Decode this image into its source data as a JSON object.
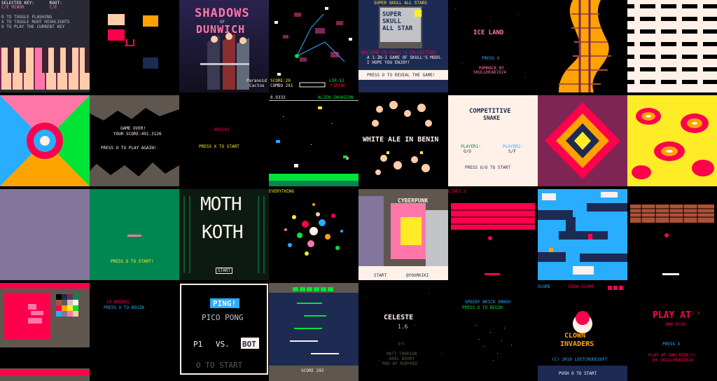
{
  "colors": {
    "pico_red": "#ff004d",
    "pico_orange": "#ffa300",
    "pico_yellow": "#ffec27",
    "pico_green": "#00e436",
    "pico_blue": "#29adff",
    "pico_pink": "#ff77a8",
    "pico_peach": "#ffccaa",
    "pico_white": "#fff1e8",
    "pico_dark_blue": "#1d2b53",
    "pico_dark_purple": "#7e2553",
    "pico_dark_green": "#008751",
    "pico_brown": "#ab5236",
    "pico_dark_gray": "#5f574f",
    "pico_light_gray": "#c2c3c7"
  },
  "carts": [
    {
      "id": "key-tester",
      "lines": [
        "SELECTED KEY:      ROOT:",
        "C/E MINOR          C/E",
        "",
        "O TO TOGGLE FLASHING",
        "X TO TOGGLE ROOT HIGHLIGHTS",
        "O TO PLAY THE CURRENT KEY"
      ]
    },
    {
      "id": "color-blocks"
    },
    {
      "id": "shadows-of-dunwich",
      "title": "SHADOWS",
      "of": "OF",
      "subtitle": "DUNWICH",
      "credit1": "Paranoid",
      "credit2": "Cactus"
    },
    {
      "id": "space-shooter",
      "score": "SCORE:20",
      "combo": "COMBO 2X1",
      "level": "LSR:12",
      "status": "FIRING"
    },
    {
      "id": "super-skull-all-star",
      "header": "SUPER SKULL ALL STARS",
      "box_title": "SUPER SKULL ALL STAR",
      "welcome": "WELCOME TO SKULL'S COLLECTION!",
      "desc": "A 1-IN-1 GAME OF SKULL'S MODS. I HOPE YOU ENJOY!",
      "prompt": "PRESS O TO REVEAL THE GAME!"
    },
    {
      "id": "ice-land",
      "title": "ICE LAND",
      "prompt": "PRESS X",
      "credit1": "ROMHACK BY",
      "credit2": "SKULLHEAD1924"
    },
    {
      "id": "brick-tower"
    },
    {
      "id": "zigzag-pattern"
    },
    {
      "id": "rainbow-kaleidoscope"
    },
    {
      "id": "game-over",
      "title": "GAME OVER!",
      "score": "YOUR SCORE:491.3126",
      "prompt": "PRESS O TO PLAY AGAIN!"
    },
    {
      "id": "bricks",
      "title": "BRICKS",
      "prompt": "PRESS X TO START"
    },
    {
      "id": "alien-invasion",
      "counter": "0.9333",
      "title": "ALIEN INVASION"
    },
    {
      "id": "white-ale-in-benin",
      "title": "WHITE ALE IN BENIN"
    },
    {
      "id": "competitive-snake",
      "title1": "COMPETITIVE",
      "title2": "SNAKE",
      "p1": "PLAYER1:",
      "p1keys": "O/O",
      "p2": "PLAYER2:",
      "p2keys": "S/F",
      "prompt": "PRESS O/O TO START"
    },
    {
      "id": "red-wave"
    },
    {
      "id": "yellow-blobs"
    },
    {
      "id": "gray-screen"
    },
    {
      "id": "green-start",
      "prompt": "PRESS O TO START!"
    },
    {
      "id": "moth-koth",
      "title1": "MOTH",
      "title2": "KOTH",
      "button": "START"
    },
    {
      "id": "everything",
      "title": "EVERYTHING"
    },
    {
      "id": "cyberpunk",
      "title": "CYBERPUNK",
      "prompt": "START",
      "handle": "@YOURKIKI"
    },
    {
      "id": "breakout-lives",
      "lives": "LIVES:3"
    },
    {
      "id": "ice-maze"
    },
    {
      "id": "brick-wall"
    },
    {
      "id": "sprite-editor"
    },
    {
      "id": "10-bricks",
      "title": "10 BRICKS",
      "prompt": "PRESS X TO BEGIN"
    },
    {
      "id": "pico-pong",
      "title": "PING!",
      "subtitle": "PICO PONG",
      "p1": "P1",
      "vs": "VS.",
      "bot": "BOT",
      "prompt": "O TO START"
    },
    {
      "id": "score-tower",
      "score": "SCORE 292"
    },
    {
      "id": "celeste",
      "title": "CELESTE",
      "version": "1.6",
      "credit_small": "X+C",
      "credit1": "MATT THORSON",
      "credit2": "NOEL BERRY",
      "credit3": "MOD BY RUBYRED"
    },
    {
      "id": "speedy-brick-smash",
      "title": "SPEEDY BRICK SMASH",
      "prompt": "PRESS O TO BEGIN"
    },
    {
      "id": "clown-invaders",
      "score_label": "SCORE",
      "hiscore_label": "HIGH SCORE",
      "title1": "CLOWN",
      "title2": "INVADERS",
      "copyright": "(C) 2019 LOSTCRUDESOFT",
      "prompt": "PUSH O TO START"
    },
    {
      "id": "play-at-own-risk",
      "title": "PLAY AT",
      "version": "1.1",
      "subtitle": "OWN RISK",
      "prompt": "PRESS X",
      "line1": "PLAY AT OWN RISK!!!",
      "line2": "BY SKULLHEAD1924"
    }
  ]
}
